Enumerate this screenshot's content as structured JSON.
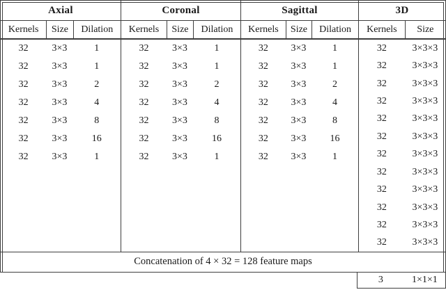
{
  "table": {
    "sections": [
      {
        "title": "Axial",
        "headers": [
          "Kernels",
          "Size",
          "Dilation"
        ],
        "rows": [
          [
            "32",
            "3×3",
            "1"
          ],
          [
            "32",
            "3×3",
            "1"
          ],
          [
            "32",
            "3×3",
            "2"
          ],
          [
            "32",
            "3×3",
            "4"
          ],
          [
            "32",
            "3×3",
            "8"
          ],
          [
            "32",
            "3×3",
            "16"
          ],
          [
            "32",
            "3×3",
            "1"
          ]
        ]
      },
      {
        "title": "Coronal",
        "headers": [
          "Kernels",
          "Size",
          "Dilation"
        ],
        "rows": [
          [
            "32",
            "3×3",
            "1"
          ],
          [
            "32",
            "3×3",
            "1"
          ],
          [
            "32",
            "3×3",
            "2"
          ],
          [
            "32",
            "3×3",
            "4"
          ],
          [
            "32",
            "3×3",
            "8"
          ],
          [
            "32",
            "3×3",
            "16"
          ],
          [
            "32",
            "3×3",
            "1"
          ]
        ]
      },
      {
        "title": "Sagittal",
        "headers": [
          "Kernels",
          "Size",
          "Dilation"
        ],
        "rows": [
          [
            "32",
            "3×3",
            "1"
          ],
          [
            "32",
            "3×3",
            "1"
          ],
          [
            "32",
            "3×3",
            "2"
          ],
          [
            "32",
            "3×3",
            "4"
          ],
          [
            "32",
            "3×3",
            "8"
          ],
          [
            "32",
            "3×3",
            "16"
          ],
          [
            "32",
            "3×3",
            "1"
          ]
        ]
      },
      {
        "title": "3D",
        "headers": [
          "Kernels",
          "Size"
        ],
        "rows": [
          [
            "32",
            "3×3×3"
          ],
          [
            "32",
            "3×3×3"
          ],
          [
            "32",
            "3×3×3"
          ],
          [
            "32",
            "3×3×3"
          ],
          [
            "32",
            "3×3×3"
          ],
          [
            "32",
            "3×3×3"
          ],
          [
            "32",
            "3×3×3"
          ],
          [
            "32",
            "3×3×3"
          ],
          [
            "32",
            "3×3×3"
          ],
          [
            "32",
            "3×3×3"
          ],
          [
            "32",
            "3×3×3"
          ],
          [
            "32",
            "3×3×3"
          ]
        ]
      }
    ],
    "concatenation_note": "Concatenation of 4 × 32 = 128 feature maps",
    "final_row": {
      "kernels": "3",
      "size": "1×1×1"
    }
  },
  "colors": {
    "background": "#ffffff",
    "border": "#3d3d3d",
    "text": "#1a1a1a"
  }
}
